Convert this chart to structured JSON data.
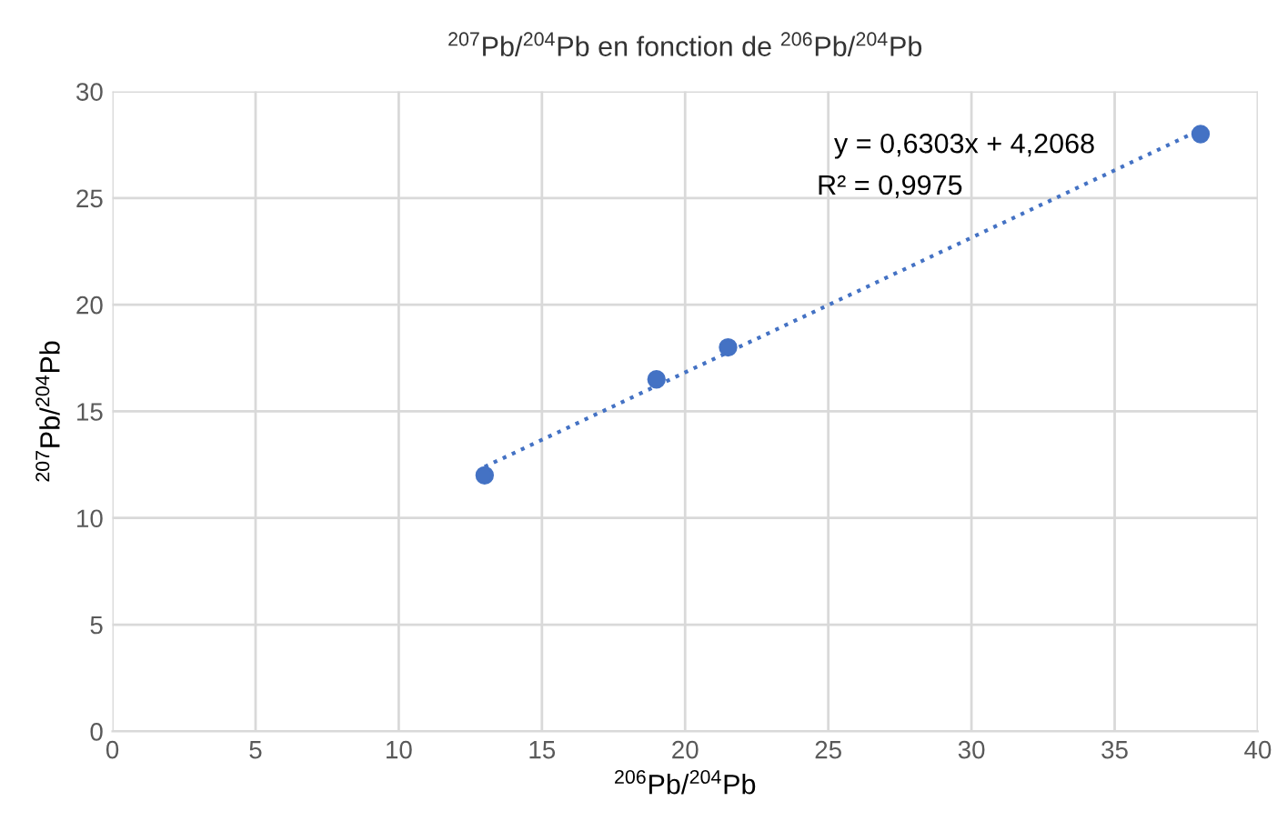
{
  "chart_data": {
    "type": "scatter",
    "title": "$^{207}$Pb/$^{204}$Pb en fonction de $^{206}$Pb/$^{204}$Pb",
    "xlabel": "$^{206}$Pb/$^{204}$Pb",
    "ylabel": "$^{207}$Pb/$^{204}$Pb",
    "annotations": [
      "y = 0,6303x + 4,2068",
      "R² = 0,9975"
    ],
    "series": [
      {
        "color": "#4472c4",
        "x": [
          13,
          19,
          21.5,
          38
        ],
        "values": [
          12,
          16.5,
          18,
          28
        ],
        "marker": "circle"
      },
      {
        "type": "line",
        "color": "#4472c4",
        "x": [
          13,
          38
        ],
        "values": [
          12.4,
          28.2
        ],
        "line_style": "dotted",
        "marker": "none"
      }
    ],
    "xlim": [
      0,
      40
    ],
    "xticks": [
      0,
      5,
      10,
      15,
      20,
      25,
      30,
      35,
      40
    ],
    "ylim": [
      0,
      30
    ],
    "yticks": [
      0,
      5,
      10,
      15,
      20,
      25,
      30
    ],
    "grid": true,
    "legend": false
  }
}
